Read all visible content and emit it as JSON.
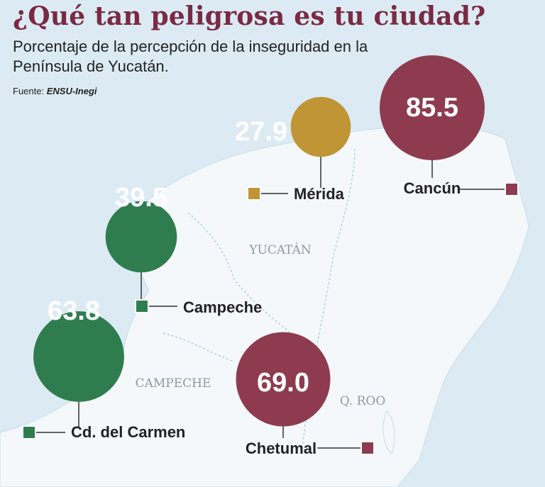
{
  "header": {
    "title": "¿Qué tan peligrosa es tu ciudad?",
    "subtitle": "Porcentaje de la percepción de la inseguridad en la Península de Yucatán.",
    "source_label": "Fuente:",
    "source_name": "ENSU-Inegi"
  },
  "state_labels": [
    "YUCATÁN",
    "CAMPECHE",
    "Q. ROO"
  ],
  "colors": {
    "yucatan": "#bf9536",
    "campeche": "#2f7d4f",
    "quintana_roo": "#8e3b50",
    "land": "#f4f8fa",
    "sea": "#dcebf3"
  },
  "chart_data": {
    "type": "bubble-map",
    "title": "¿Qué tan peligrosa es tu ciudad?",
    "subtitle": "Porcentaje de la percepción de la inseguridad en la Península de Yucatán.",
    "unit": "%",
    "series": [
      {
        "city": "Mérida",
        "value": 27.9,
        "state": "YUCATÁN",
        "color": "#bf9536"
      },
      {
        "city": "Campeche",
        "value": 39.5,
        "state": "CAMPECHE",
        "color": "#2f7d4f"
      },
      {
        "city": "Cd. del Carmen",
        "value": 63.8,
        "state": "CAMPECHE",
        "color": "#2f7d4f"
      },
      {
        "city": "Chetumal",
        "value": 69.0,
        "state": "Q. ROO",
        "color": "#8e3b50"
      },
      {
        "city": "Cancún",
        "value": 85.5,
        "state": "Q. ROO",
        "color": "#8e3b50"
      }
    ]
  }
}
